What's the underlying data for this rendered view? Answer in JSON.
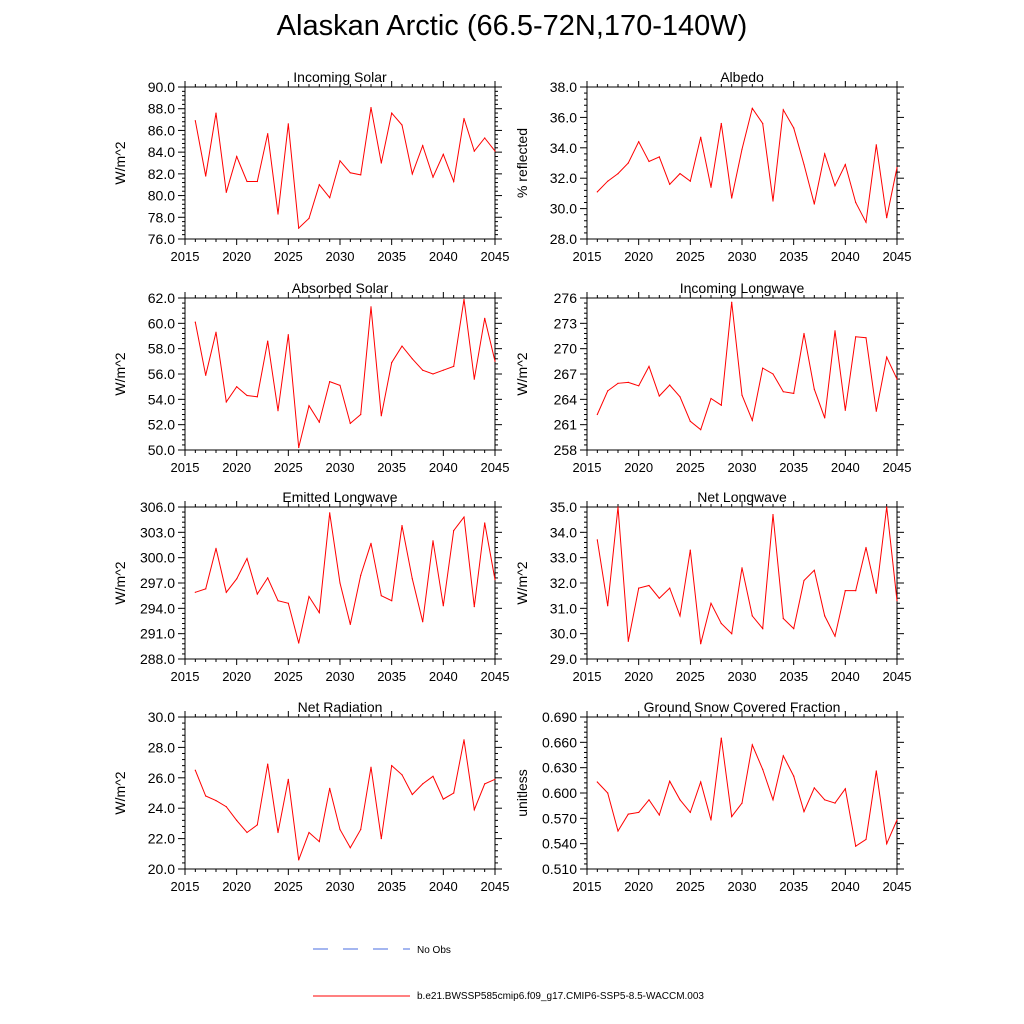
{
  "title": "Alaskan Arctic (66.5-72N,170-140W)",
  "colors": {
    "model": "#ff0000",
    "obs": "#4a6ee0",
    "axis": "#000000"
  },
  "legend": {
    "obs_label": "No Obs",
    "model_label": "b.e21.BWSSP585cmip6.f09_g17.CMIP6-SSP5-8.5-WACCM.003"
  },
  "chart_data": [
    {
      "type": "line",
      "title": "Incoming Solar",
      "ylabel": "W/m^2",
      "xlim": [
        2015,
        2045
      ],
      "ylim": [
        76,
        90
      ],
      "xticks": [
        2015,
        2020,
        2025,
        2030,
        2035,
        2040,
        2045
      ],
      "xtick_labels": [
        "2015",
        "2020",
        "2025",
        "2030",
        "2035",
        "2040",
        "2045"
      ],
      "yticks": [
        76,
        78,
        80,
        82,
        84,
        86,
        88,
        90
      ],
      "ytick_labels": [
        "76.0",
        "78.0",
        "80.0",
        "82.0",
        "84.0",
        "86.0",
        "88.0",
        "90.0"
      ],
      "x": [
        2016,
        2017,
        2018,
        2019,
        2020,
        2021,
        2022,
        2023,
        2024,
        2025,
        2026,
        2027,
        2028,
        2029,
        2030,
        2031,
        2032,
        2033,
        2034,
        2035,
        2036,
        2037,
        2038,
        2039,
        2040,
        2041,
        2042,
        2043,
        2044,
        2045
      ],
      "y": [
        86.9,
        81.8,
        87.6,
        80.3,
        83.6,
        81.3,
        81.3,
        85.7,
        78.3,
        86.6,
        77.0,
        77.9,
        81.0,
        79.8,
        83.2,
        82.1,
        81.9,
        88.1,
        83.0,
        87.6,
        86.5,
        82.0,
        84.6,
        81.7,
        83.8,
        81.3,
        87.1,
        84.1,
        85.3,
        84.1
      ]
    },
    {
      "type": "line",
      "title": "Albedo",
      "ylabel": "% reflected",
      "xlim": [
        2015,
        2045
      ],
      "ylim": [
        28,
        38
      ],
      "xticks": [
        2015,
        2020,
        2025,
        2030,
        2035,
        2040,
        2045
      ],
      "xtick_labels": [
        "2015",
        "2020",
        "2025",
        "2030",
        "2035",
        "2040",
        "2045"
      ],
      "yticks": [
        28,
        30,
        32,
        34,
        36,
        38
      ],
      "ytick_labels": [
        "28.0",
        "30.0",
        "32.0",
        "34.0",
        "36.0",
        "38.0"
      ],
      "x": [
        2016,
        2017,
        2018,
        2019,
        2020,
        2021,
        2022,
        2023,
        2024,
        2025,
        2026,
        2027,
        2028,
        2029,
        2030,
        2031,
        2032,
        2033,
        2034,
        2035,
        2036,
        2037,
        2038,
        2039,
        2040,
        2041,
        2042,
        2043,
        2044,
        2045
      ],
      "y": [
        31.1,
        31.8,
        32.3,
        33.0,
        34.4,
        33.1,
        33.4,
        31.6,
        32.3,
        31.8,
        34.7,
        31.4,
        35.6,
        30.7,
        33.9,
        36.6,
        35.6,
        30.5,
        36.5,
        35.3,
        32.9,
        30.3,
        33.6,
        31.5,
        32.9,
        30.4,
        29.1,
        34.2,
        29.4,
        32.7
      ]
    },
    {
      "type": "line",
      "title": "Absorbed Solar",
      "ylabel": "W/m^2",
      "xlim": [
        2015,
        2045
      ],
      "ylim": [
        50,
        62
      ],
      "xticks": [
        2015,
        2020,
        2025,
        2030,
        2035,
        2040,
        2045
      ],
      "xtick_labels": [
        "2015",
        "2020",
        "2025",
        "2030",
        "2035",
        "2040",
        "2045"
      ],
      "yticks": [
        50,
        52,
        54,
        56,
        58,
        60,
        62
      ],
      "ytick_labels": [
        "50.0",
        "52.0",
        "54.0",
        "56.0",
        "58.0",
        "60.0",
        "62.0"
      ],
      "x": [
        2016,
        2017,
        2018,
        2019,
        2020,
        2021,
        2022,
        2023,
        2024,
        2025,
        2026,
        2027,
        2028,
        2029,
        2030,
        2031,
        2032,
        2033,
        2034,
        2035,
        2036,
        2037,
        2038,
        2039,
        2040,
        2041,
        2042,
        2043,
        2044,
        2045
      ],
      "y": [
        60.1,
        55.9,
        59.3,
        53.8,
        55.0,
        54.3,
        54.2,
        58.6,
        53.1,
        59.1,
        50.2,
        53.5,
        52.2,
        55.4,
        55.1,
        52.1,
        52.8,
        61.3,
        52.7,
        56.9,
        58.2,
        57.2,
        56.3,
        56.0,
        56.3,
        56.6,
        61.9,
        55.6,
        60.4,
        57.0
      ]
    },
    {
      "type": "line",
      "title": "Incoming Longwave",
      "ylabel": "W/m^2",
      "xlim": [
        2015,
        2045
      ],
      "ylim": [
        258,
        276
      ],
      "xticks": [
        2015,
        2020,
        2025,
        2030,
        2035,
        2040,
        2045
      ],
      "xtick_labels": [
        "2015",
        "2020",
        "2025",
        "2030",
        "2035",
        "2040",
        "2045"
      ],
      "yticks": [
        258,
        261,
        264,
        267,
        270,
        273,
        276
      ],
      "ytick_labels": [
        "258",
        "261",
        "264",
        "267",
        "270",
        "273",
        "276"
      ],
      "x": [
        2016,
        2017,
        2018,
        2019,
        2020,
        2021,
        2022,
        2023,
        2024,
        2025,
        2026,
        2027,
        2028,
        2029,
        2030,
        2031,
        2032,
        2033,
        2034,
        2035,
        2036,
        2037,
        2038,
        2039,
        2040,
        2041,
        2042,
        2043,
        2044,
        2045
      ],
      "y": [
        262.2,
        265.0,
        265.9,
        266.0,
        265.6,
        267.9,
        264.4,
        265.7,
        264.3,
        261.4,
        260.4,
        264.1,
        263.3,
        275.5,
        264.5,
        261.5,
        267.7,
        267.0,
        264.9,
        264.7,
        271.8,
        265.2,
        261.8,
        272.1,
        262.7,
        271.4,
        271.3,
        262.6,
        269.0,
        266.4
      ]
    },
    {
      "type": "line",
      "title": "Emitted Longwave",
      "ylabel": "W/m^2",
      "xlim": [
        2015,
        2045
      ],
      "ylim": [
        288,
        306
      ],
      "xticks": [
        2015,
        2020,
        2025,
        2030,
        2035,
        2040,
        2045
      ],
      "xtick_labels": [
        "2015",
        "2020",
        "2025",
        "2030",
        "2035",
        "2040",
        "2045"
      ],
      "yticks": [
        288,
        291,
        294,
        297,
        300,
        303,
        306
      ],
      "ytick_labels": [
        "288.0",
        "291.0",
        "294.0",
        "297.0",
        "300.0",
        "303.0",
        "306.0"
      ],
      "x": [
        2016,
        2017,
        2018,
        2019,
        2020,
        2021,
        2022,
        2023,
        2024,
        2025,
        2026,
        2027,
        2028,
        2029,
        2030,
        2031,
        2032,
        2033,
        2034,
        2035,
        2036,
        2037,
        2038,
        2039,
        2040,
        2041,
        2042,
        2043,
        2044,
        2045
      ],
      "y": [
        295.9,
        296.3,
        301.1,
        295.9,
        297.5,
        299.9,
        295.7,
        297.6,
        294.9,
        294.6,
        289.9,
        295.4,
        293.5,
        305.3,
        297.0,
        292.1,
        297.9,
        301.7,
        295.5,
        294.9,
        303.8,
        297.5,
        292.4,
        302.0,
        294.3,
        303.2,
        304.8,
        294.2,
        304.1,
        297.4
      ]
    },
    {
      "type": "line",
      "title": "Net Longwave",
      "ylabel": "W/m^2",
      "xlim": [
        2015,
        2045
      ],
      "ylim": [
        29,
        35
      ],
      "xticks": [
        2015,
        2020,
        2025,
        2030,
        2035,
        2040,
        2045
      ],
      "xtick_labels": [
        "2015",
        "2020",
        "2025",
        "2030",
        "2035",
        "2040",
        "2045"
      ],
      "yticks": [
        29,
        30,
        31,
        32,
        33,
        34,
        35
      ],
      "ytick_labels": [
        "29.0",
        "30.0",
        "31.0",
        "32.0",
        "33.0",
        "34.0",
        "35.0"
      ],
      "x": [
        2016,
        2017,
        2018,
        2019,
        2020,
        2021,
        2022,
        2023,
        2024,
        2025,
        2026,
        2027,
        2028,
        2029,
        2030,
        2031,
        2032,
        2033,
        2034,
        2035,
        2036,
        2037,
        2038,
        2039,
        2040,
        2041,
        2042,
        2043,
        2044,
        2045
      ],
      "y": [
        33.7,
        31.1,
        35.0,
        29.7,
        31.8,
        31.9,
        31.4,
        31.8,
        30.7,
        33.3,
        29.6,
        31.2,
        30.4,
        30.0,
        32.6,
        30.7,
        30.2,
        34.7,
        30.6,
        30.2,
        32.1,
        32.5,
        30.7,
        29.9,
        31.7,
        31.7,
        33.4,
        31.6,
        35.0,
        31.3
      ]
    },
    {
      "type": "line",
      "title": "Net Radiation",
      "ylabel": "W/m^2",
      "xlim": [
        2015,
        2045
      ],
      "ylim": [
        20,
        30
      ],
      "xticks": [
        2015,
        2020,
        2025,
        2030,
        2035,
        2040,
        2045
      ],
      "xtick_labels": [
        "2015",
        "2020",
        "2025",
        "2030",
        "2035",
        "2040",
        "2045"
      ],
      "yticks": [
        20,
        22,
        24,
        26,
        28,
        30
      ],
      "ytick_labels": [
        "20.0",
        "22.0",
        "24.0",
        "26.0",
        "28.0",
        "30.0"
      ],
      "x": [
        2016,
        2017,
        2018,
        2019,
        2020,
        2021,
        2022,
        2023,
        2024,
        2025,
        2026,
        2027,
        2028,
        2029,
        2030,
        2031,
        2032,
        2033,
        2034,
        2035,
        2036,
        2037,
        2038,
        2039,
        2040,
        2041,
        2042,
        2043,
        2044,
        2045
      ],
      "y": [
        26.5,
        24.8,
        24.5,
        24.1,
        23.2,
        22.4,
        22.9,
        26.9,
        22.4,
        25.9,
        20.6,
        22.4,
        21.8,
        25.3,
        22.6,
        21.4,
        22.6,
        26.7,
        22.0,
        26.8,
        26.2,
        24.9,
        25.6,
        26.1,
        24.6,
        25.0,
        28.5,
        23.9,
        25.6,
        25.9
      ]
    },
    {
      "type": "line",
      "title": "Ground Snow Covered Fraction",
      "ylabel": "unitless",
      "xlim": [
        2015,
        2045
      ],
      "ylim": [
        0.51,
        0.69
      ],
      "xticks": [
        2015,
        2020,
        2025,
        2030,
        2035,
        2040,
        2045
      ],
      "xtick_labels": [
        "2015",
        "2020",
        "2025",
        "2030",
        "2035",
        "2040",
        "2045"
      ],
      "yticks": [
        0.51,
        0.54,
        0.57,
        0.6,
        0.63,
        0.66,
        0.69
      ],
      "ytick_labels": [
        "0.510",
        "0.540",
        "0.570",
        "0.600",
        "0.630",
        "0.660",
        "0.690"
      ],
      "x": [
        2016,
        2017,
        2018,
        2019,
        2020,
        2021,
        2022,
        2023,
        2024,
        2025,
        2026,
        2027,
        2028,
        2029,
        2030,
        2031,
        2032,
        2033,
        2034,
        2035,
        2036,
        2037,
        2038,
        2039,
        2040,
        2041,
        2042,
        2043,
        2044,
        2045
      ],
      "y": [
        0.613,
        0.6,
        0.555,
        0.575,
        0.577,
        0.592,
        0.574,
        0.614,
        0.592,
        0.577,
        0.613,
        0.568,
        0.665,
        0.572,
        0.588,
        0.657,
        0.628,
        0.592,
        0.644,
        0.62,
        0.578,
        0.606,
        0.592,
        0.588,
        0.605,
        0.537,
        0.545,
        0.626,
        0.54,
        0.568
      ]
    }
  ]
}
